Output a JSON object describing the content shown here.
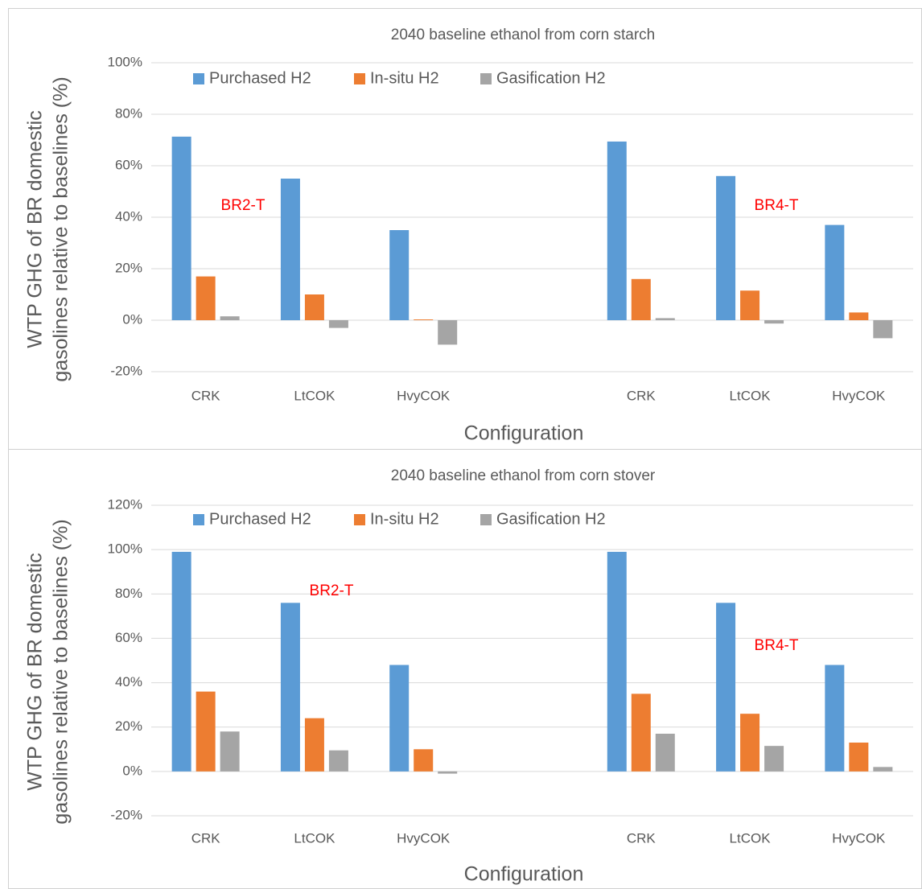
{
  "chart_data": [
    {
      "type": "bar",
      "title": "2040 baseline ethanol from corn starch",
      "ylabel": [
        "WTP GHG of BR domestic",
        "gasolines relative to baselines (%)"
      ],
      "xlabel": "Configuration",
      "categories": [
        "CRK",
        "LtCOK",
        "HvyCOK",
        null,
        "CRK",
        "LtCOK",
        "HvyCOK"
      ],
      "series": [
        {
          "name": "Purchased H2",
          "color": "#5b9bd5",
          "values": [
            71.3,
            55,
            35,
            null,
            69.4,
            56,
            37
          ]
        },
        {
          "name": "In-situ H2",
          "color": "#ed7d31",
          "values": [
            17,
            10,
            0.3,
            null,
            16,
            11.5,
            3
          ]
        },
        {
          "name": "Gasification H2",
          "color": "#a5a5a5",
          "values": [
            1.5,
            -3,
            -9.5,
            null,
            0.8,
            -1.3,
            -7
          ]
        }
      ],
      "ylim": [
        -20,
        100
      ],
      "yticks": [
        {
          "value": -20,
          "label": "-20%"
        },
        {
          "value": 0,
          "label": "0%"
        },
        {
          "value": 20,
          "label": "20%"
        },
        {
          "value": 40,
          "label": "40%"
        },
        {
          "value": 60,
          "label": "60%"
        },
        {
          "value": 80,
          "label": "80%"
        },
        {
          "value": 100,
          "label": "100%"
        }
      ],
      "grid": true,
      "legend": "top-left",
      "annotations": [
        {
          "text": "BR2-T",
          "color": "#ff0000"
        },
        {
          "text": "BR4-T",
          "color": "#ff0000"
        }
      ]
    },
    {
      "type": "bar",
      "title": "2040 baseline ethanol from corn stover",
      "ylabel": [
        "WTP GHG of BR domestic",
        "gasolines relative to baselines (%)"
      ],
      "xlabel": "Configuration",
      "categories": [
        "CRK",
        "LtCOK",
        "HvyCOK",
        null,
        "CRK",
        "LtCOK",
        "HvyCOK"
      ],
      "series": [
        {
          "name": "Purchased H2",
          "color": "#5b9bd5",
          "values": [
            99,
            76,
            48,
            null,
            99,
            76,
            48
          ]
        },
        {
          "name": "In-situ H2",
          "color": "#ed7d31",
          "values": [
            36,
            24,
            10,
            null,
            35,
            26,
            13
          ]
        },
        {
          "name": "Gasification H2",
          "color": "#a5a5a5",
          "values": [
            18,
            9.5,
            -1,
            null,
            17,
            11.5,
            2
          ]
        }
      ],
      "ylim": [
        -20,
        120
      ],
      "yticks": [
        {
          "value": -20,
          "label": "-20%"
        },
        {
          "value": 0,
          "label": "0%"
        },
        {
          "value": 20,
          "label": "20%"
        },
        {
          "value": 40,
          "label": "40%"
        },
        {
          "value": 60,
          "label": "60%"
        },
        {
          "value": 80,
          "label": "80%"
        },
        {
          "value": 100,
          "label": "100%"
        },
        {
          "value": 120,
          "label": "120%"
        }
      ],
      "grid": true,
      "legend": "top-left",
      "annotations": [
        {
          "text": "BR2-T",
          "color": "#ff0000"
        },
        {
          "text": "BR4-T",
          "color": "#ff0000"
        }
      ]
    }
  ]
}
